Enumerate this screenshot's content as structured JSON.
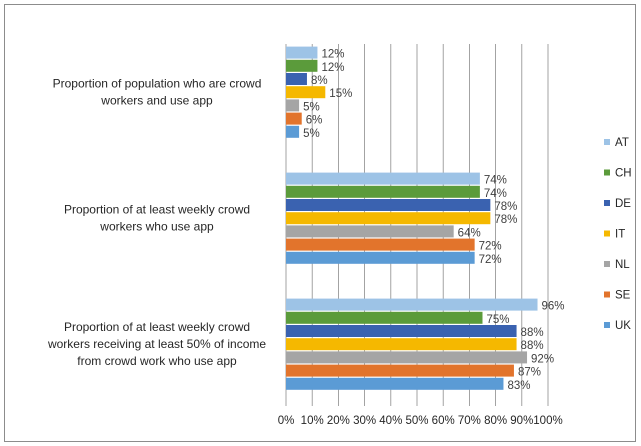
{
  "chart_data": {
    "type": "bar",
    "orientation": "horizontal",
    "xlim": [
      0,
      100
    ],
    "x_ticks": [
      "0%",
      "10%",
      "20%",
      "30%",
      "40%",
      "50%",
      "60%",
      "70%",
      "80%",
      "90%",
      "100%"
    ],
    "grid": true,
    "legend_position": "right",
    "categories": [
      [
        "Proportion of population who are crowd",
        "workers and use app"
      ],
      [
        "Proportion of at least weekly crowd",
        "workers who use app"
      ],
      [
        "Proportion of at least weekly crowd",
        "workers receiving at least 50% of income",
        "from crowd work who use app"
      ]
    ],
    "series": [
      {
        "name": "AT",
        "color": "#9dc3e6",
        "values": [
          12,
          74,
          96
        ]
      },
      {
        "name": "CH",
        "color": "#5b9b3b",
        "values": [
          12,
          74,
          75
        ]
      },
      {
        "name": "DE",
        "color": "#3a62b0",
        "values": [
          8,
          78,
          88
        ]
      },
      {
        "name": "IT",
        "color": "#f5b800",
        "values": [
          15,
          78,
          88
        ]
      },
      {
        "name": "NL",
        "color": "#a5a5a5",
        "values": [
          5,
          64,
          92
        ]
      },
      {
        "name": "SE",
        "color": "#e2742c",
        "values": [
          6,
          72,
          87
        ]
      },
      {
        "name": "UK",
        "color": "#5b9bd5",
        "values": [
          5,
          72,
          83
        ]
      }
    ],
    "value_suffix": "%"
  }
}
